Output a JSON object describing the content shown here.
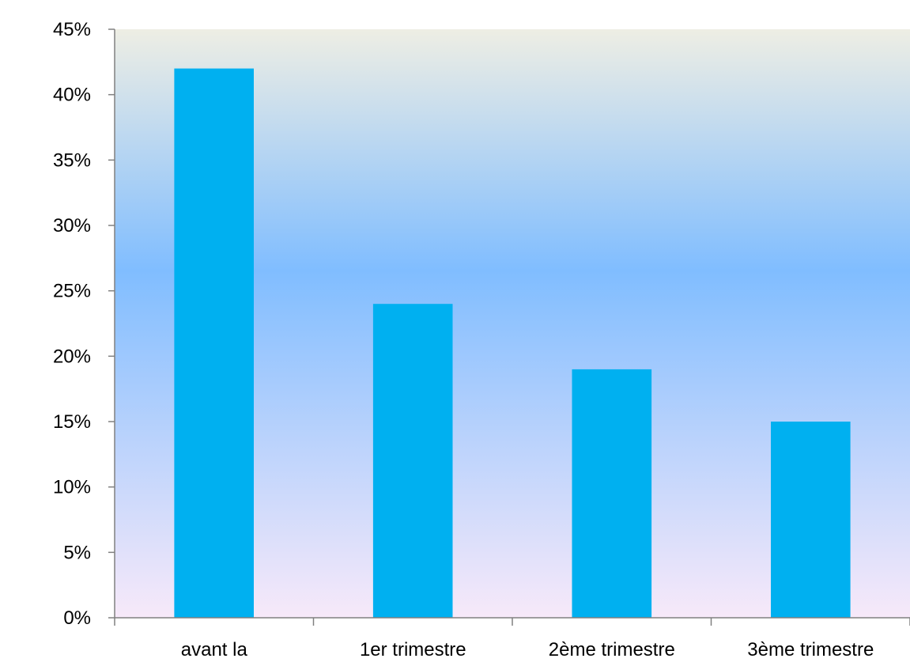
{
  "chart_data": {
    "type": "bar",
    "categories": [
      "avant la",
      "1er trimestre",
      "2ème trimestre",
      "3ème trimestre"
    ],
    "values": [
      42,
      24,
      19,
      15
    ],
    "ylim": [
      0,
      45
    ],
    "yticks": [
      0,
      5,
      10,
      15,
      20,
      25,
      30,
      35,
      40,
      45
    ],
    "ytick_labels": [
      "0%",
      "5%",
      "10%",
      "15%",
      "20%",
      "25%",
      "30%",
      "35%",
      "40%",
      "45%"
    ],
    "grid": false,
    "legend": "none"
  },
  "colors": {
    "bar": "#00b0f0",
    "axis": "#808080",
    "background_top": "#eeeee4",
    "background_middle": "#80bdff",
    "background_bottom": "#f7e9f9"
  }
}
